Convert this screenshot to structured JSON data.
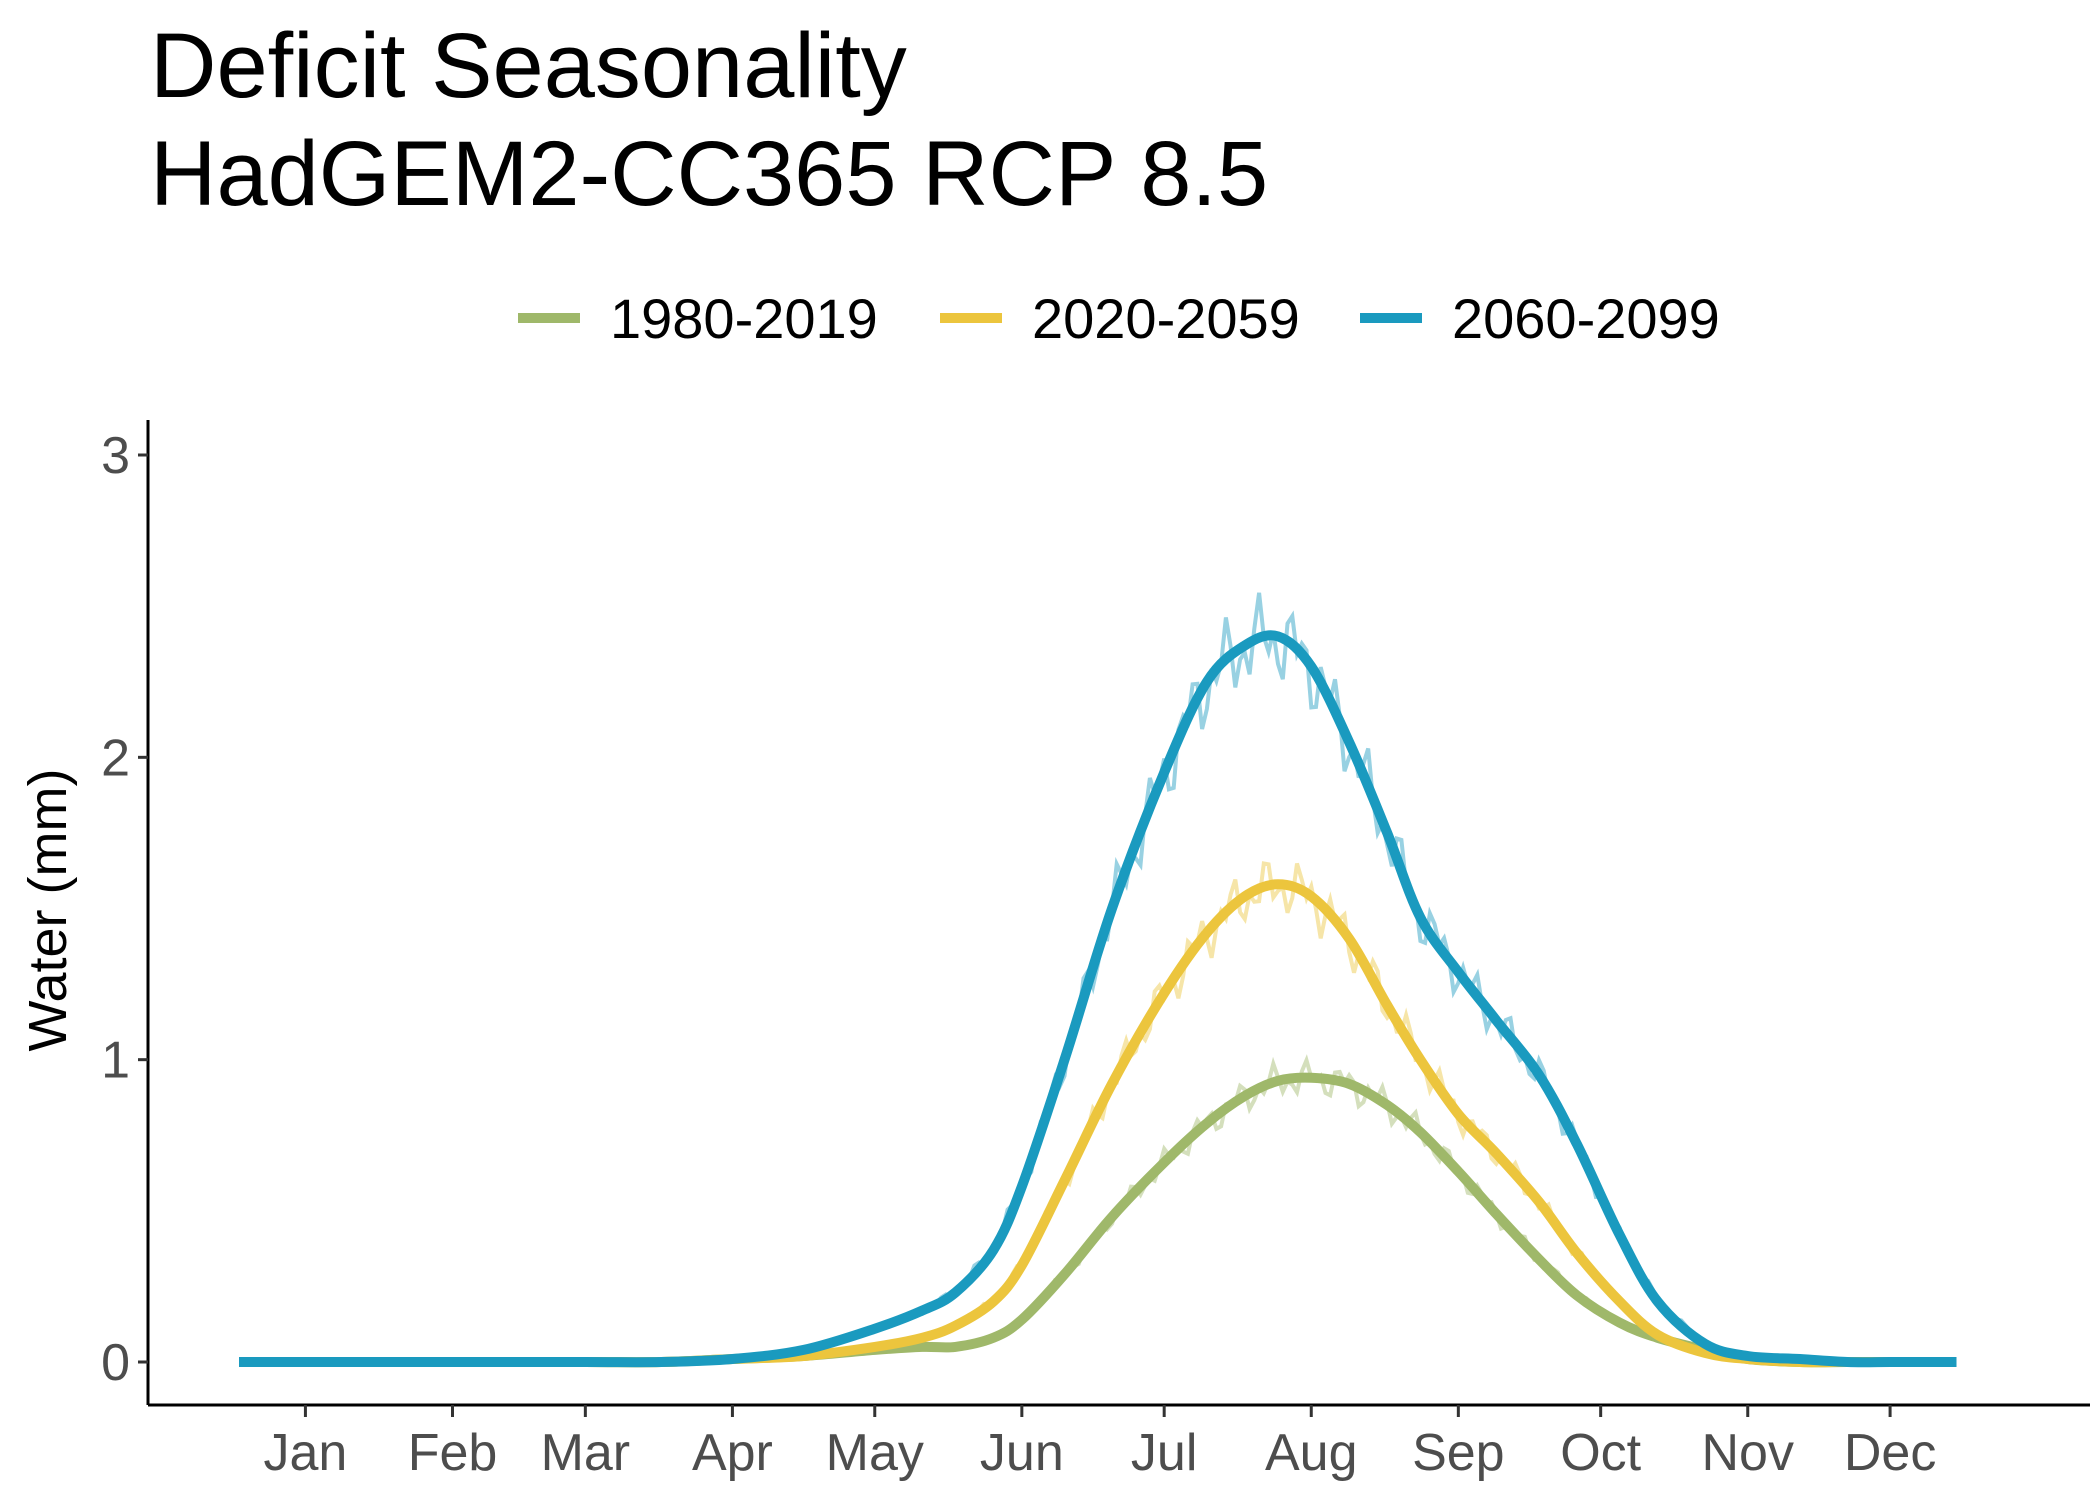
{
  "chart_data": {
    "type": "line",
    "title": [
      "Deficit Seasonality",
      "HadGEM2-CC365 RCP 8.5"
    ],
    "xlabel": "",
    "ylabel": "Water (mm)",
    "x_unit": "day of year",
    "xlim": [
      1,
      365
    ],
    "ylim": [
      0,
      3
    ],
    "y_ticks": [
      0,
      1,
      2,
      3
    ],
    "x_ticks": [
      {
        "label": "Jan",
        "day": 15
      },
      {
        "label": "Feb",
        "day": 46
      },
      {
        "label": "Mar",
        "day": 74
      },
      {
        "label": "Apr",
        "day": 105
      },
      {
        "label": "May",
        "day": 135
      },
      {
        "label": "Jun",
        "day": 166
      },
      {
        "label": "Jul",
        "day": 196
      },
      {
        "label": "Aug",
        "day": 227
      },
      {
        "label": "Sep",
        "day": 258
      },
      {
        "label": "Oct",
        "day": 288
      },
      {
        "label": "Nov",
        "day": 319
      },
      {
        "label": "Dec",
        "day": 349
      }
    ],
    "grid": false,
    "legend_position": "top",
    "x": [
      1,
      15,
      46,
      74,
      90,
      105,
      120,
      135,
      145,
      152,
      160,
      166,
      175,
      185,
      196,
      205,
      213,
      220,
      227,
      235,
      243,
      250,
      258,
      266,
      275,
      283,
      292,
      300,
      310,
      319,
      330,
      340,
      349,
      355,
      363
    ],
    "series": [
      {
        "name": "1980-2019",
        "color": "#9fb86a",
        "values": [
          0,
          0,
          0,
          0,
          0,
          0.01,
          0.02,
          0.04,
          0.05,
          0.05,
          0.08,
          0.14,
          0.29,
          0.48,
          0.66,
          0.79,
          0.88,
          0.93,
          0.94,
          0.92,
          0.85,
          0.76,
          0.63,
          0.49,
          0.34,
          0.22,
          0.13,
          0.08,
          0.04,
          0.01,
          0,
          0,
          0,
          0,
          0
        ]
      },
      {
        "name": "2020-2059",
        "color": "#ecc53d",
        "values": [
          0,
          0,
          0,
          0,
          0,
          0.01,
          0.02,
          0.05,
          0.08,
          0.12,
          0.2,
          0.32,
          0.6,
          0.92,
          1.22,
          1.42,
          1.54,
          1.58,
          1.54,
          1.4,
          1.18,
          1.0,
          0.82,
          0.69,
          0.53,
          0.36,
          0.2,
          0.09,
          0.03,
          0.01,
          0,
          0,
          0,
          0,
          0
        ]
      },
      {
        "name": "2060-2099",
        "color": "#1a9abf",
        "values": [
          0,
          0,
          0,
          0,
          0,
          0.01,
          0.04,
          0.11,
          0.17,
          0.23,
          0.37,
          0.58,
          1.0,
          1.5,
          1.95,
          2.25,
          2.37,
          2.4,
          2.3,
          2.05,
          1.75,
          1.47,
          1.29,
          1.13,
          0.95,
          0.72,
          0.42,
          0.2,
          0.06,
          0.02,
          0.01,
          0,
          0,
          0,
          0
        ]
      }
    ]
  }
}
